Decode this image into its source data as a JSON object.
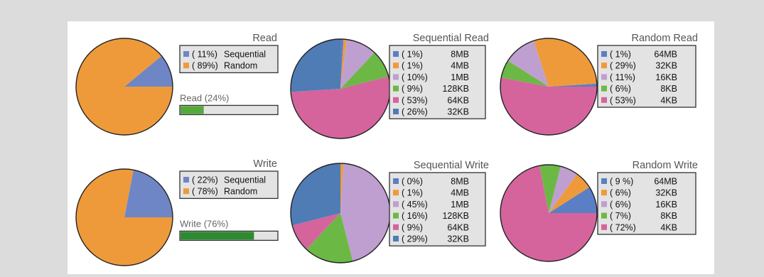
{
  "chart_data": [
    {
      "type": "pie",
      "title": "Read",
      "categories": [
        "Sequential",
        "Random"
      ],
      "values": [
        11,
        89
      ],
      "legend_labels": [
        {
          "pct": "( 11%)",
          "label": "Sequential"
        },
        {
          "pct": "( 89%)",
          "label": "Random"
        }
      ],
      "colors": [
        "#6f86c6",
        "#ef9a3a"
      ],
      "legend_placement": "right",
      "progress": {
        "label": "Read (24%)",
        "value": 24,
        "color": "#54a93b"
      }
    },
    {
      "type": "pie",
      "title": "Sequential Read",
      "categories": [
        "8MB",
        "4MB",
        "1MB",
        "128KB",
        "64KB",
        "32KB"
      ],
      "values": [
        1,
        1,
        10,
        9,
        53,
        26
      ],
      "legend_labels": [
        {
          "pct": "(  1%)",
          "label": "8MB"
        },
        {
          "pct": "(  1%)",
          "label": "4MB"
        },
        {
          "pct": "( 10%)",
          "label": "1MB"
        },
        {
          "pct": "(  9%)",
          "label": "128KB"
        },
        {
          "pct": "( 53%)",
          "label": "64KB"
        },
        {
          "pct": "( 26%)",
          "label": "32KB"
        }
      ],
      "colors": [
        "#5b7fc4",
        "#ef9a3a",
        "#bf9fcf",
        "#6cb845",
        "#d5649d",
        "#4f7cb5"
      ],
      "legend_placement": "right"
    },
    {
      "type": "pie",
      "title": "Random Read",
      "categories": [
        "64MB",
        "32KB",
        "16KB",
        "8KB",
        "4KB"
      ],
      "values": [
        1,
        29,
        11,
        6,
        53
      ],
      "legend_labels": [
        {
          "pct": "(  1%)",
          "label": "64MB"
        },
        {
          "pct": "( 29%)",
          "label": "32KB"
        },
        {
          "pct": "( 11%)",
          "label": "16KB"
        },
        {
          "pct": "(  6%)",
          "label": "8KB"
        },
        {
          "pct": "( 53%)",
          "label": "4KB"
        }
      ],
      "colors": [
        "#5b7fc4",
        "#ef9a3a",
        "#bf9fcf",
        "#6cb845",
        "#d5649d"
      ],
      "legend_placement": "right"
    },
    {
      "type": "pie",
      "title": "Write",
      "categories": [
        "Sequential",
        "Random"
      ],
      "values": [
        22,
        78
      ],
      "legend_labels": [
        {
          "pct": "( 22%)",
          "label": "Sequential"
        },
        {
          "pct": "( 78%)",
          "label": "Random"
        }
      ],
      "colors": [
        "#6f86c6",
        "#ef9a3a"
      ],
      "legend_placement": "right",
      "progress": {
        "label": "Write (76%)",
        "value": 76,
        "color": "#2e8a31"
      }
    },
    {
      "type": "pie",
      "title": "Sequential Write",
      "categories": [
        "8MB",
        "4MB",
        "1MB",
        "128KB",
        "64KB",
        "32KB"
      ],
      "values": [
        0,
        1,
        45,
        16,
        9,
        29
      ],
      "legend_labels": [
        {
          "pct": "(  0%)",
          "label": "8MB"
        },
        {
          "pct": "(  1%)",
          "label": "4MB"
        },
        {
          "pct": "( 45%)",
          "label": "1MB"
        },
        {
          "pct": "( 16%)",
          "label": "128KB"
        },
        {
          "pct": "(  9%)",
          "label": "64KB"
        },
        {
          "pct": "( 29%)",
          "label": "32KB"
        }
      ],
      "colors": [
        "#5b7fc4",
        "#ef9a3a",
        "#bf9fcf",
        "#6cb845",
        "#d5649d",
        "#4f7cb5"
      ],
      "legend_placement": "right"
    },
    {
      "type": "pie",
      "title": "Random Write",
      "categories": [
        "64MB",
        "32KB",
        "16KB",
        "8KB",
        "4KB"
      ],
      "values": [
        9,
        6,
        6,
        7,
        72
      ],
      "legend_labels": [
        {
          "pct": "( 9 %)",
          "label": "64MB"
        },
        {
          "pct": "(  6%)",
          "label": "32KB"
        },
        {
          "pct": "(  6%)",
          "label": "16KB"
        },
        {
          "pct": "(  7%)",
          "label": "8KB"
        },
        {
          "pct": "( 72%)",
          "label": "4KB"
        }
      ],
      "colors": [
        "#5b7fc4",
        "#ef9a3a",
        "#bf9fcf",
        "#6cb845",
        "#d5649d"
      ],
      "legend_placement": "right"
    }
  ]
}
